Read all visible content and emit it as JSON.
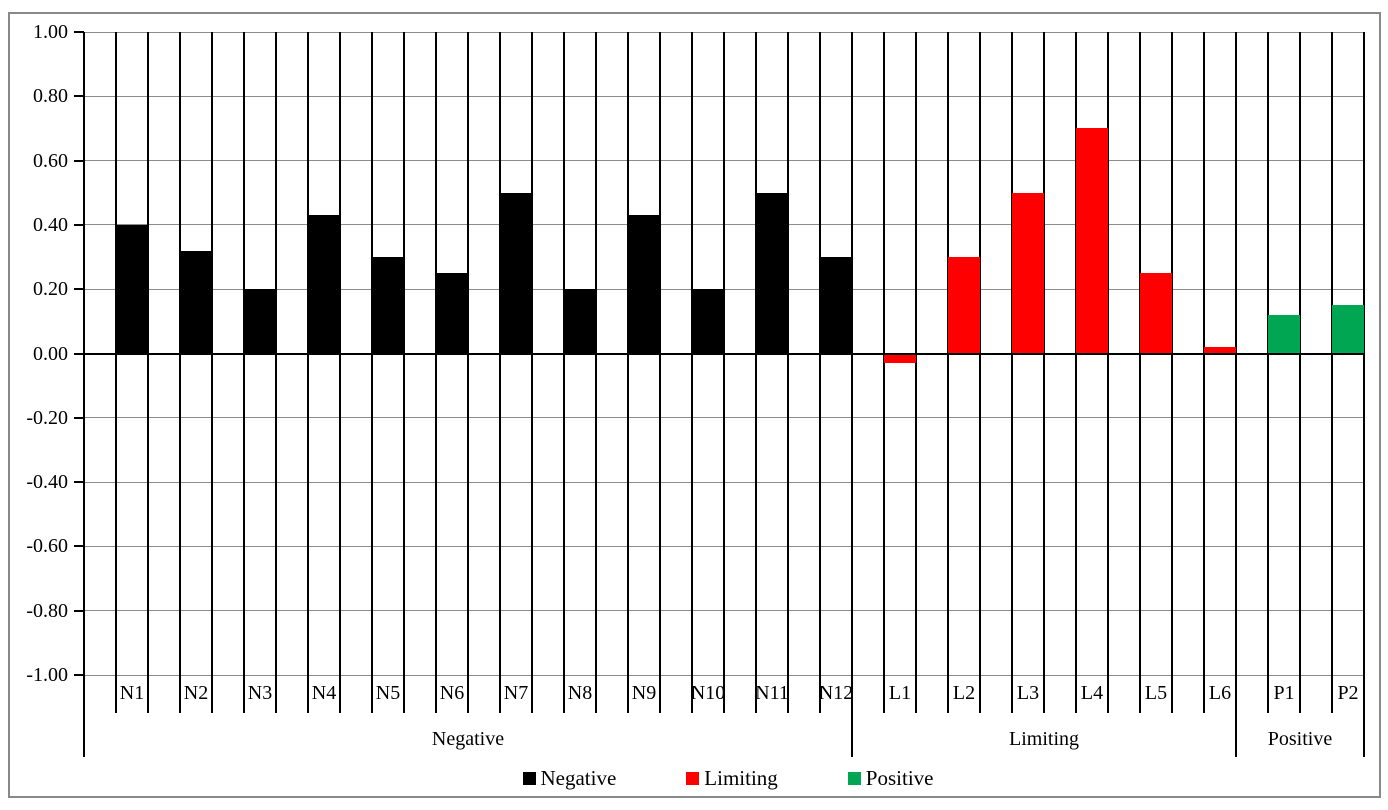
{
  "figure": {
    "background": "#ffffff",
    "border_color": "#898989"
  },
  "chart_data": {
    "type": "bar",
    "title": "",
    "xlabel": "",
    "ylabel": "",
    "categories": [
      "N1",
      "N2",
      "N3",
      "N4",
      "N5",
      "N6",
      "N7",
      "N8",
      "N9",
      "N10",
      "N11",
      "N12",
      "L1",
      "L2",
      "L3",
      "L4",
      "L5",
      "L6",
      "P1",
      "P2"
    ],
    "values": [
      0.4,
      0.32,
      0.2,
      0.43,
      0.3,
      0.25,
      0.5,
      0.2,
      0.43,
      0.2,
      0.5,
      0.3,
      -0.03,
      0.3,
      0.5,
      0.7,
      0.25,
      0.02,
      0.12,
      0.15
    ],
    "groups": [
      {
        "label": "Negative",
        "color": "#000000",
        "count": 12
      },
      {
        "label": "Limiting",
        "color": "#FF0000",
        "count": 6
      },
      {
        "label": "Positive",
        "color": "#00A651",
        "count": 2
      }
    ],
    "ylim": [
      -1,
      1
    ],
    "ytick_step": 0.2,
    "ytick_labels": [
      "1.00",
      "0.80",
      "0.60",
      "0.40",
      "0.20",
      "0.00",
      "-0.20",
      "-0.40",
      "-0.60",
      "-0.80",
      "-1.00"
    ],
    "grid": {
      "horizontal_color": "#8c8c8c",
      "vertical_color": "#000000",
      "horizontal_on": true,
      "vertical_on": true
    },
    "legend": {
      "position": "bottom",
      "entries": [
        {
          "label": "Negative",
          "color": "#000000"
        },
        {
          "label": "Limiting",
          "color": "#FF0000"
        },
        {
          "label": "Positive",
          "color": "#00A651"
        }
      ]
    }
  }
}
